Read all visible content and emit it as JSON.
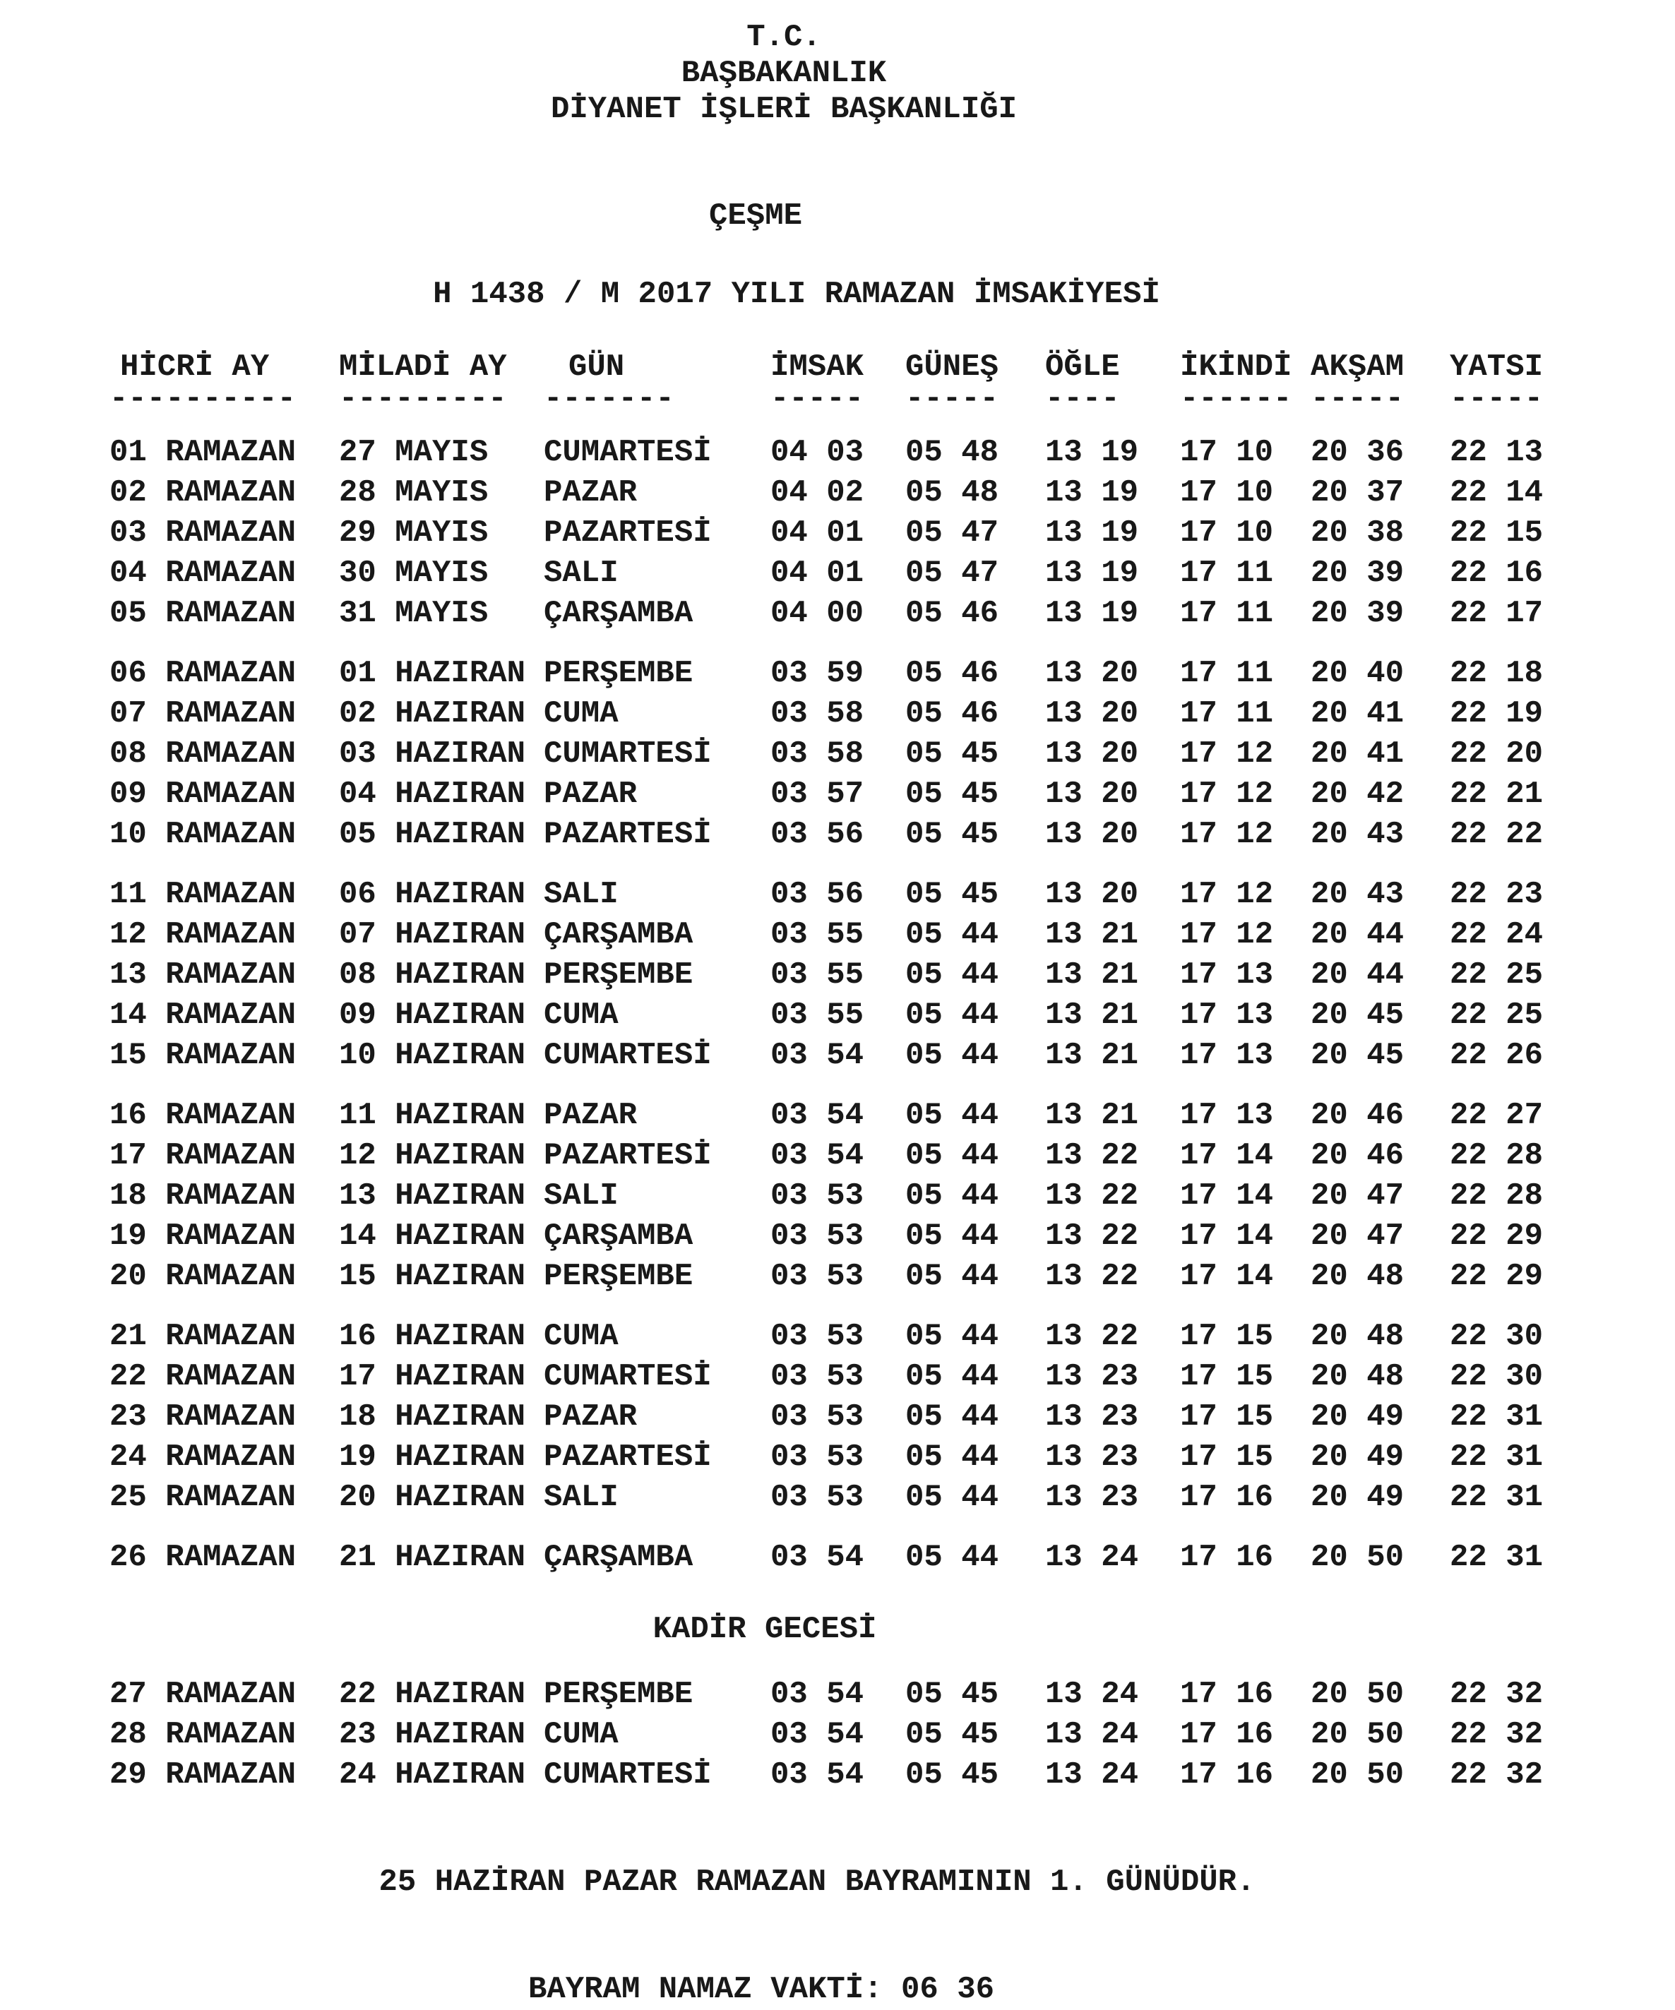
{
  "document": {
    "org_line1": "T.C.",
    "org_line2": "BAŞBAKANLIK",
    "org_line3": "DİYANET İŞLERİ BAŞKANLIĞI",
    "city": "ÇEŞME",
    "title": "H 1438 / M 2017 YILI RAMAZAN İMSAKİYESİ",
    "text_color": "#181818",
    "background_color": "#ffffff"
  },
  "table": {
    "columns": [
      "HİCRİ AY",
      "MİLADİ AY",
      "GÜN",
      "İMSAK",
      "GÜNEŞ",
      "ÖĞLE",
      "İKİNDİ",
      "AKŞAM",
      "YATSI"
    ],
    "underline": [
      "----------",
      "---------",
      "-------",
      "-----",
      "-----",
      "----",
      "------",
      "-----",
      "-----"
    ],
    "kadir_label": "KADİR GECESİ",
    "kadir_before_row": 27,
    "rows": [
      {
        "hicri": "01 RAMAZAN",
        "miladi": "27 MAYIS",
        "gun": "CUMARTESİ",
        "imsak": "04 03",
        "gunes": "05 48",
        "ogle": "13 19",
        "ikindi": "17 10",
        "aksam": "20 36",
        "yatsi": "22 13"
      },
      {
        "hicri": "02 RAMAZAN",
        "miladi": "28 MAYIS",
        "gun": "PAZAR",
        "imsak": "04 02",
        "gunes": "05 48",
        "ogle": "13 19",
        "ikindi": "17 10",
        "aksam": "20 37",
        "yatsi": "22 14"
      },
      {
        "hicri": "03 RAMAZAN",
        "miladi": "29 MAYIS",
        "gun": "PAZARTESİ",
        "imsak": "04 01",
        "gunes": "05 47",
        "ogle": "13 19",
        "ikindi": "17 10",
        "aksam": "20 38",
        "yatsi": "22 15"
      },
      {
        "hicri": "04 RAMAZAN",
        "miladi": "30 MAYIS",
        "gun": "SALI",
        "imsak": "04 01",
        "gunes": "05 47",
        "ogle": "13 19",
        "ikindi": "17 11",
        "aksam": "20 39",
        "yatsi": "22 16"
      },
      {
        "hicri": "05 RAMAZAN",
        "miladi": "31 MAYIS",
        "gun": "ÇARŞAMBA",
        "imsak": "04 00",
        "gunes": "05 46",
        "ogle": "13 19",
        "ikindi": "17 11",
        "aksam": "20 39",
        "yatsi": "22 17"
      },
      {
        "hicri": "06 RAMAZAN",
        "miladi": "01 HAZIRAN",
        "gun": "PERŞEMBE",
        "imsak": "03 59",
        "gunes": "05 46",
        "ogle": "13 20",
        "ikindi": "17 11",
        "aksam": "20 40",
        "yatsi": "22 18"
      },
      {
        "hicri": "07 RAMAZAN",
        "miladi": "02 HAZIRAN",
        "gun": "CUMA",
        "imsak": "03 58",
        "gunes": "05 46",
        "ogle": "13 20",
        "ikindi": "17 11",
        "aksam": "20 41",
        "yatsi": "22 19"
      },
      {
        "hicri": "08 RAMAZAN",
        "miladi": "03 HAZIRAN",
        "gun": "CUMARTESİ",
        "imsak": "03 58",
        "gunes": "05 45",
        "ogle": "13 20",
        "ikindi": "17 12",
        "aksam": "20 41",
        "yatsi": "22 20"
      },
      {
        "hicri": "09 RAMAZAN",
        "miladi": "04 HAZIRAN",
        "gun": "PAZAR",
        "imsak": "03 57",
        "gunes": "05 45",
        "ogle": "13 20",
        "ikindi": "17 12",
        "aksam": "20 42",
        "yatsi": "22 21"
      },
      {
        "hicri": "10 RAMAZAN",
        "miladi": "05 HAZIRAN",
        "gun": "PAZARTESİ",
        "imsak": "03 56",
        "gunes": "05 45",
        "ogle": "13 20",
        "ikindi": "17 12",
        "aksam": "20 43",
        "yatsi": "22 22"
      },
      {
        "hicri": "11 RAMAZAN",
        "miladi": "06 HAZIRAN",
        "gun": "SALI",
        "imsak": "03 56",
        "gunes": "05 45",
        "ogle": "13 20",
        "ikindi": "17 12",
        "aksam": "20 43",
        "yatsi": "22 23"
      },
      {
        "hicri": "12 RAMAZAN",
        "miladi": "07 HAZIRAN",
        "gun": "ÇARŞAMBA",
        "imsak": "03 55",
        "gunes": "05 44",
        "ogle": "13 21",
        "ikindi": "17 12",
        "aksam": "20 44",
        "yatsi": "22 24"
      },
      {
        "hicri": "13 RAMAZAN",
        "miladi": "08 HAZIRAN",
        "gun": "PERŞEMBE",
        "imsak": "03 55",
        "gunes": "05 44",
        "ogle": "13 21",
        "ikindi": "17 13",
        "aksam": "20 44",
        "yatsi": "22 25"
      },
      {
        "hicri": "14 RAMAZAN",
        "miladi": "09 HAZIRAN",
        "gun": "CUMA",
        "imsak": "03 55",
        "gunes": "05 44",
        "ogle": "13 21",
        "ikindi": "17 13",
        "aksam": "20 45",
        "yatsi": "22 25"
      },
      {
        "hicri": "15 RAMAZAN",
        "miladi": "10 HAZIRAN",
        "gun": "CUMARTESİ",
        "imsak": "03 54",
        "gunes": "05 44",
        "ogle": "13 21",
        "ikindi": "17 13",
        "aksam": "20 45",
        "yatsi": "22 26"
      },
      {
        "hicri": "16 RAMAZAN",
        "miladi": "11 HAZIRAN",
        "gun": "PAZAR",
        "imsak": "03 54",
        "gunes": "05 44",
        "ogle": "13 21",
        "ikindi": "17 13",
        "aksam": "20 46",
        "yatsi": "22 27"
      },
      {
        "hicri": "17 RAMAZAN",
        "miladi": "12 HAZIRAN",
        "gun": "PAZARTESİ",
        "imsak": "03 54",
        "gunes": "05 44",
        "ogle": "13 22",
        "ikindi": "17 14",
        "aksam": "20 46",
        "yatsi": "22 28"
      },
      {
        "hicri": "18 RAMAZAN",
        "miladi": "13 HAZIRAN",
        "gun": "SALI",
        "imsak": "03 53",
        "gunes": "05 44",
        "ogle": "13 22",
        "ikindi": "17 14",
        "aksam": "20 47",
        "yatsi": "22 28"
      },
      {
        "hicri": "19 RAMAZAN",
        "miladi": "14 HAZIRAN",
        "gun": "ÇARŞAMBA",
        "imsak": "03 53",
        "gunes": "05 44",
        "ogle": "13 22",
        "ikindi": "17 14",
        "aksam": "20 47",
        "yatsi": "22 29"
      },
      {
        "hicri": "20 RAMAZAN",
        "miladi": "15 HAZIRAN",
        "gun": "PERŞEMBE",
        "imsak": "03 53",
        "gunes": "05 44",
        "ogle": "13 22",
        "ikindi": "17 14",
        "aksam": "20 48",
        "yatsi": "22 29"
      },
      {
        "hicri": "21 RAMAZAN",
        "miladi": "16 HAZIRAN",
        "gun": "CUMA",
        "imsak": "03 53",
        "gunes": "05 44",
        "ogle": "13 22",
        "ikindi": "17 15",
        "aksam": "20 48",
        "yatsi": "22 30"
      },
      {
        "hicri": "22 RAMAZAN",
        "miladi": "17 HAZIRAN",
        "gun": "CUMARTESİ",
        "imsak": "03 53",
        "gunes": "05 44",
        "ogle": "13 23",
        "ikindi": "17 15",
        "aksam": "20 48",
        "yatsi": "22 30"
      },
      {
        "hicri": "23 RAMAZAN",
        "miladi": "18 HAZIRAN",
        "gun": "PAZAR",
        "imsak": "03 53",
        "gunes": "05 44",
        "ogle": "13 23",
        "ikindi": "17 15",
        "aksam": "20 49",
        "yatsi": "22 31"
      },
      {
        "hicri": "24 RAMAZAN",
        "miladi": "19 HAZIRAN",
        "gun": "PAZARTESİ",
        "imsak": "03 53",
        "gunes": "05 44",
        "ogle": "13 23",
        "ikindi": "17 15",
        "aksam": "20 49",
        "yatsi": "22 31"
      },
      {
        "hicri": "25 RAMAZAN",
        "miladi": "20 HAZIRAN",
        "gun": "SALI",
        "imsak": "03 53",
        "gunes": "05 44",
        "ogle": "13 23",
        "ikindi": "17 16",
        "aksam": "20 49",
        "yatsi": "22 31"
      },
      {
        "hicri": "26 RAMAZAN",
        "miladi": "21 HAZIRAN",
        "gun": "ÇARŞAMBA",
        "imsak": "03 54",
        "gunes": "05 44",
        "ogle": "13 24",
        "ikindi": "17 16",
        "aksam": "20 50",
        "yatsi": "22 31"
      },
      {
        "hicri": "27 RAMAZAN",
        "miladi": "22 HAZIRAN",
        "gun": "PERŞEMBE",
        "imsak": "03 54",
        "gunes": "05 45",
        "ogle": "13 24",
        "ikindi": "17 16",
        "aksam": "20 50",
        "yatsi": "22 32"
      },
      {
        "hicri": "28 RAMAZAN",
        "miladi": "23 HAZIRAN",
        "gun": "CUMA",
        "imsak": "03 54",
        "gunes": "05 45",
        "ogle": "13 24",
        "ikindi": "17 16",
        "aksam": "20 50",
        "yatsi": "22 32"
      },
      {
        "hicri": "29 RAMAZAN",
        "miladi": "24 HAZIRAN",
        "gun": "CUMARTESİ",
        "imsak": "03 54",
        "gunes": "05 45",
        "ogle": "13 24",
        "ikindi": "17 16",
        "aksam": "20 50",
        "yatsi": "22 32"
      }
    ]
  },
  "footer": {
    "bayram_note": "25 HAZİRAN PAZAR RAMAZAN BAYRAMININ 1. GÜNÜDÜR.",
    "bayram_prayer": "BAYRAM NAMAZ VAKTİ: 06 36"
  }
}
